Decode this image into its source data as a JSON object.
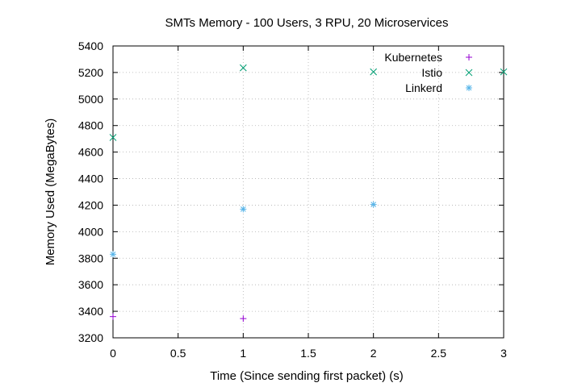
{
  "chart_data": {
    "type": "scatter",
    "title": "SMTs Memory - 100 Users, 3 RPU, 20 Microservices",
    "xlabel": "Time (Since sending first packet) (s)",
    "ylabel": "Memory Used (MegaBytes)",
    "xlim": [
      0,
      3
    ],
    "ylim": [
      3200,
      5400
    ],
    "xticks": [
      0,
      0.5,
      1,
      1.5,
      2,
      2.5,
      3
    ],
    "xtick_labels": [
      "0",
      "0.5",
      "1",
      "1.5",
      "2",
      "2.5",
      "3"
    ],
    "yticks": [
      3200,
      3400,
      3600,
      3800,
      4000,
      4200,
      4400,
      4600,
      4800,
      5000,
      5200,
      5400
    ],
    "ytick_labels": [
      "3200",
      "3400",
      "3600",
      "3800",
      "4000",
      "4200",
      "4400",
      "4600",
      "4800",
      "5000",
      "5200",
      "5400"
    ],
    "grid": true,
    "legend_position": "top-right",
    "series": [
      {
        "name": "Kubernetes",
        "marker": "plus",
        "color": "#9400d3",
        "points": [
          [
            0,
            3360
          ],
          [
            1,
            3345
          ]
        ]
      },
      {
        "name": "Istio",
        "marker": "cross",
        "color": "#009e73",
        "points": [
          [
            0,
            4710
          ],
          [
            1,
            5235
          ],
          [
            2,
            5205
          ],
          [
            3,
            5205
          ]
        ]
      },
      {
        "name": "Linkerd",
        "marker": "star",
        "color": "#56b4e9",
        "points": [
          [
            0,
            3830
          ],
          [
            1,
            4170
          ],
          [
            2,
            4205
          ]
        ]
      }
    ]
  }
}
